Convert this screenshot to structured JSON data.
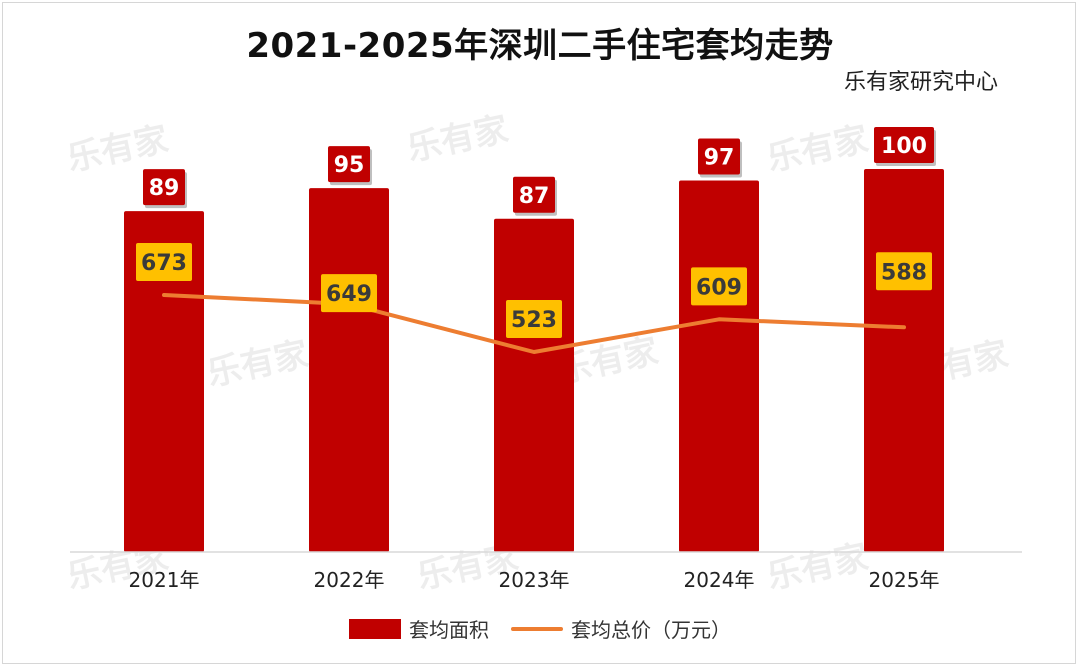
{
  "title": "2021-2025年深圳二手住宅套均走势",
  "source": "乐有家研究中心",
  "watermark": "乐有家",
  "colors": {
    "bar": "#c00000",
    "bar_label_bg": "#c00000",
    "line": "#ed7d31",
    "line_label_bg": "#ffc000",
    "axis": "#d9d9d9"
  },
  "chart_data": {
    "type": "bar",
    "categories": [
      "2021年",
      "2022年",
      "2023年",
      "2024年",
      "2025年"
    ],
    "series": [
      {
        "name": "套均面积",
        "type": "bar",
        "values": [
          89,
          95,
          87,
          97,
          100
        ]
      },
      {
        "name": "套均总价（万元）",
        "type": "line",
        "values": [
          673,
          649,
          523,
          609,
          588
        ]
      }
    ],
    "legend_position": "bottom",
    "grid": false
  },
  "legend": {
    "bar_label": "套均面积",
    "line_label": "套均总价（万元）"
  }
}
